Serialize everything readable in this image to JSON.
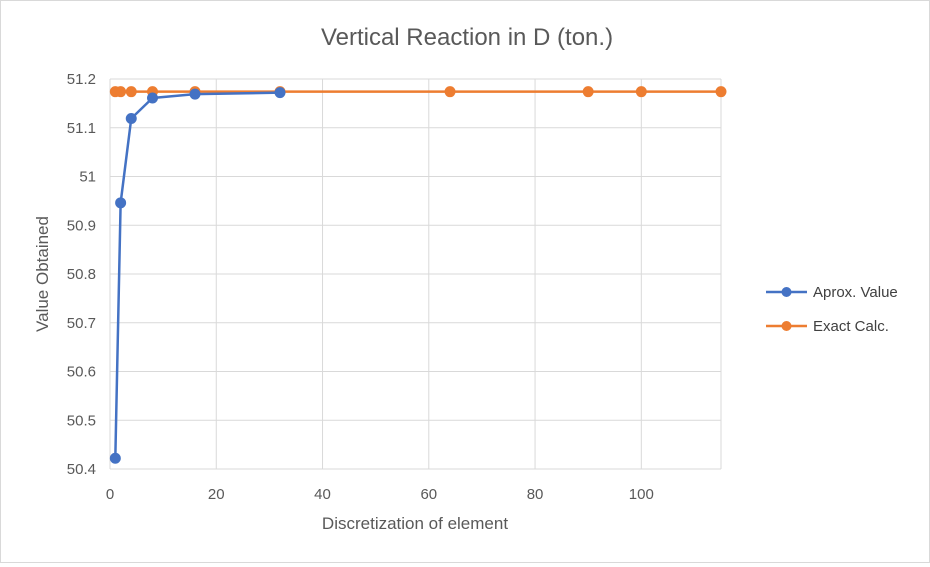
{
  "chart_data": {
    "type": "scatter",
    "title": "Vertical Reaction in D (ton.)",
    "xlabel": "Discretization of element",
    "ylabel": "Value Obtained",
    "xlim": [
      0,
      115
    ],
    "ylim": [
      50.4,
      51.2
    ],
    "x_ticks": [
      0,
      20,
      40,
      60,
      80,
      100
    ],
    "y_ticks": [
      50.4,
      50.5,
      50.6,
      50.7,
      50.8,
      50.9,
      51,
      51.1,
      51.2
    ],
    "x_tick_labels": [
      "0",
      "20",
      "40",
      "60",
      "80",
      "100"
    ],
    "y_tick_labels": [
      "50.4",
      "50.5",
      "50.6",
      "50.7",
      "50.8",
      "50.9",
      "51",
      "51.1",
      "51.2"
    ],
    "grid": true,
    "legend_position": "right",
    "series": [
      {
        "name": "Aprox. Value",
        "color": "#4472c4",
        "x": [
          1,
          2,
          4,
          8,
          16,
          32
        ],
        "y": [
          50.422,
          50.946,
          51.119,
          51.161,
          51.169,
          51.172
        ]
      },
      {
        "name": "Exact Calc.",
        "color": "#ed7d31",
        "x": [
          1,
          2,
          4,
          8,
          16,
          32,
          64,
          90,
          100,
          115
        ],
        "y": [
          51.174,
          51.174,
          51.174,
          51.174,
          51.174,
          51.174,
          51.174,
          51.174,
          51.174,
          51.174
        ]
      }
    ]
  }
}
